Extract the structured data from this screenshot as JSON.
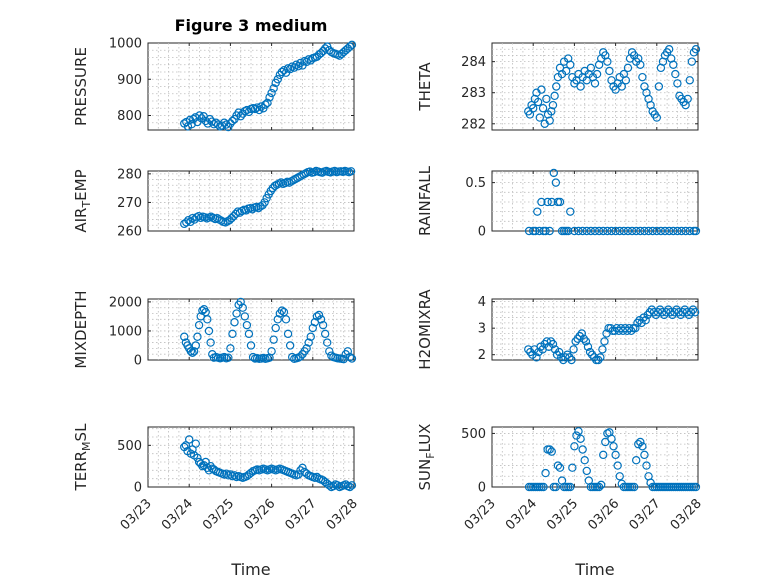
{
  "figure": {
    "title": "Figure 3 medium",
    "xlabel": "Time",
    "marker_color": "#0072BD",
    "xticks": [
      "03/23",
      "03/24",
      "03/25",
      "03/26",
      "03/27",
      "03/28"
    ]
  },
  "chart_data": [
    {
      "type": "scatter",
      "ylabel": "PRESSURE",
      "ylim": [
        760,
        1000
      ],
      "yticks": [
        800,
        900,
        1000
      ],
      "grid": true,
      "x": [
        0.88,
        0.93,
        0.97,
        1.02,
        1.06,
        1.1,
        1.15,
        1.2,
        1.25,
        1.3,
        1.35,
        1.4,
        1.45,
        1.5,
        1.55,
        1.6,
        1.65,
        1.7,
        1.75,
        1.8,
        1.85,
        1.9,
        1.95,
        2.0,
        2.05,
        2.1,
        2.15,
        2.2,
        2.25,
        2.3,
        2.35,
        2.4,
        2.45,
        2.5,
        2.55,
        2.6,
        2.65,
        2.7,
        2.75,
        2.8,
        2.85,
        2.9,
        2.95,
        3.0,
        3.05,
        3.1,
        3.15,
        3.2,
        3.25,
        3.3,
        3.35,
        3.4,
        3.45,
        3.5,
        3.55,
        3.6,
        3.65,
        3.7,
        3.75,
        3.8,
        3.85,
        3.9,
        3.95,
        4.0,
        4.05,
        4.1,
        4.15,
        4.2,
        4.25,
        4.3,
        4.35,
        4.4,
        4.45,
        4.5,
        4.55,
        4.6,
        4.65,
        4.7,
        4.75,
        4.8,
        4.85,
        4.9,
        4.95
      ],
      "y": [
        778,
        782,
        770,
        788,
        776,
        790,
        795,
        782,
        800,
        792,
        798,
        785,
        778,
        790,
        783,
        776,
        780,
        775,
        770,
        772,
        780,
        775,
        768,
        778,
        785,
        790,
        800,
        808,
        798,
        805,
        812,
        815,
        810,
        818,
        820,
        818,
        822,
        815,
        825,
        820,
        830,
        835,
        850,
        862,
        875,
        890,
        900,
        912,
        920,
        925,
        918,
        930,
        928,
        935,
        932,
        940,
        936,
        945,
        938,
        950,
        948,
        955,
        952,
        958,
        960,
        962,
        968,
        972,
        978,
        985,
        990,
        980,
        975,
        972,
        970,
        968,
        965,
        970,
        975,
        980,
        985,
        990,
        995
      ]
    },
    {
      "type": "scatter",
      "ylabel": "THETA",
      "ylim": [
        281.8,
        284.6
      ],
      "yticks": [
        282,
        283,
        284
      ],
      "grid": true,
      "x": [
        0.88,
        0.92,
        0.96,
        1.0,
        1.04,
        1.08,
        1.12,
        1.16,
        1.2,
        1.24,
        1.28,
        1.32,
        1.36,
        1.4,
        1.44,
        1.48,
        1.52,
        1.56,
        1.6,
        1.65,
        1.7,
        1.75,
        1.8,
        1.85,
        1.9,
        1.95,
        2.0,
        2.05,
        2.1,
        2.15,
        2.2,
        2.25,
        2.3,
        2.35,
        2.4,
        2.45,
        2.5,
        2.55,
        2.6,
        2.65,
        2.7,
        2.75,
        2.8,
        2.85,
        2.9,
        2.95,
        3.0,
        3.05,
        3.1,
        3.15,
        3.2,
        3.25,
        3.3,
        3.35,
        3.4,
        3.45,
        3.5,
        3.55,
        3.6,
        3.65,
        3.7,
        3.75,
        3.8,
        3.85,
        3.9,
        3.95,
        4.0,
        4.05,
        4.1,
        4.15,
        4.2,
        4.25,
        4.3,
        4.35,
        4.4,
        4.45,
        4.5,
        4.55,
        4.6,
        4.65,
        4.7,
        4.75,
        4.8,
        4.85,
        4.9,
        4.95
      ],
      "y": [
        282.4,
        282.3,
        282.6,
        282.5,
        282.8,
        283.0,
        282.7,
        282.2,
        283.1,
        282.5,
        282.0,
        282.8,
        282.3,
        282.1,
        282.4,
        282.6,
        282.9,
        283.2,
        283.5,
        283.8,
        283.6,
        284.0,
        283.7,
        284.1,
        283.9,
        283.5,
        283.3,
        283.4,
        283.6,
        283.2,
        283.5,
        283.7,
        283.4,
        283.6,
        283.8,
        283.5,
        283.3,
        283.6,
        283.9,
        284.1,
        284.3,
        284.2,
        284.0,
        283.7,
        283.4,
        283.2,
        283.1,
        283.3,
        283.5,
        283.2,
        283.6,
        283.4,
        283.8,
        284.1,
        284.3,
        284.2,
        284.0,
        284.1,
        283.9,
        283.5,
        283.2,
        283.0,
        282.8,
        282.6,
        282.4,
        282.3,
        282.2,
        283.2,
        283.8,
        284.0,
        284.2,
        284.3,
        284.4,
        284.1,
        283.9,
        283.6,
        283.3,
        282.9,
        282.8,
        282.7,
        282.6,
        282.8,
        283.4,
        284.0,
        284.3,
        284.4
      ]
    },
    {
      "type": "scatter",
      "ylabel": "AIR_TEMP",
      "ylim": [
        260,
        281
      ],
      "yticks": [
        260,
        270,
        280
      ],
      "grid": true,
      "x": [
        0.88,
        0.93,
        0.98,
        1.03,
        1.08,
        1.13,
        1.18,
        1.23,
        1.28,
        1.33,
        1.38,
        1.43,
        1.48,
        1.53,
        1.58,
        1.63,
        1.68,
        1.73,
        1.78,
        1.83,
        1.88,
        1.93,
        1.98,
        2.03,
        2.08,
        2.13,
        2.18,
        2.23,
        2.28,
        2.33,
        2.38,
        2.43,
        2.48,
        2.53,
        2.58,
        2.63,
        2.68,
        2.73,
        2.78,
        2.83,
        2.88,
        2.93,
        2.98,
        3.03,
        3.08,
        3.13,
        3.18,
        3.23,
        3.28,
        3.33,
        3.38,
        3.43,
        3.48,
        3.53,
        3.58,
        3.63,
        3.68,
        3.73,
        3.78,
        3.83,
        3.88,
        3.93,
        3.98,
        4.03,
        4.08,
        4.13,
        4.18,
        4.23,
        4.28,
        4.33,
        4.38,
        4.43,
        4.48,
        4.53,
        4.58,
        4.63,
        4.68,
        4.73,
        4.78,
        4.83,
        4.88,
        4.93
      ],
      "y": [
        262.5,
        263.0,
        263.8,
        263.2,
        264.5,
        264.0,
        264.8,
        265.2,
        264.6,
        265.0,
        264.8,
        264.4,
        264.7,
        265.0,
        264.6,
        264.2,
        264.5,
        264.0,
        263.6,
        263.2,
        263.0,
        263.4,
        263.8,
        264.5,
        265.2,
        266.0,
        266.8,
        266.4,
        267.0,
        267.4,
        267.2,
        267.8,
        268.0,
        267.6,
        268.2,
        268.4,
        268.0,
        268.6,
        269.0,
        270.0,
        271.5,
        272.8,
        274.0,
        275.0,
        275.8,
        276.2,
        276.6,
        277.0,
        276.5,
        276.8,
        277.2,
        276.9,
        277.4,
        277.8,
        278.2,
        278.6,
        279.0,
        279.4,
        279.8,
        280.2,
        280.6,
        280.8,
        280.4,
        280.6,
        281.0,
        280.8,
        280.6,
        280.4,
        280.8,
        281.0,
        280.7,
        280.5,
        280.8,
        281.0,
        280.6,
        280.8,
        280.9,
        280.7,
        281.0,
        280.8,
        280.6,
        280.9
      ]
    },
    {
      "type": "scatter",
      "ylabel": "RAINFALL",
      "ylim": [
        0,
        0.62
      ],
      "yticks": [
        0,
        0.5
      ],
      "grid": true,
      "x": [
        0.9,
        1.0,
        1.05,
        1.1,
        1.15,
        1.2,
        1.25,
        1.3,
        1.35,
        1.4,
        1.45,
        1.5,
        1.55,
        1.6,
        1.65,
        1.7,
        1.75,
        1.8,
        1.85,
        1.9,
        2.0,
        2.1,
        2.2,
        2.3,
        2.4,
        2.5,
        2.6,
        2.7,
        2.8,
        2.9,
        3.0,
        3.1,
        3.2,
        3.3,
        3.4,
        3.5,
        3.6,
        3.7,
        3.8,
        3.9,
        4.0,
        4.1,
        4.2,
        4.3,
        4.4,
        4.5,
        4.6,
        4.7,
        4.8,
        4.9,
        4.95
      ],
      "y": [
        0,
        0,
        0,
        0.2,
        0,
        0.3,
        0,
        0,
        0.3,
        0,
        0.3,
        0.6,
        0.5,
        0.3,
        0.3,
        0,
        0,
        0,
        0,
        0.2,
        0,
        0,
        0,
        0,
        0,
        0,
        0,
        0,
        0,
        0,
        0,
        0,
        0,
        0,
        0,
        0,
        0,
        0,
        0,
        0,
        0,
        0,
        0,
        0,
        0,
        0,
        0,
        0,
        0,
        0,
        0
      ]
    },
    {
      "type": "scatter",
      "ylabel": "MIXDEPTH",
      "ylim": [
        0,
        2100
      ],
      "yticks": [
        0,
        1000,
        2000
      ],
      "grid": true,
      "x": [
        0.88,
        0.92,
        0.96,
        1.0,
        1.04,
        1.08,
        1.12,
        1.16,
        1.2,
        1.24,
        1.28,
        1.32,
        1.36,
        1.4,
        1.44,
        1.48,
        1.52,
        1.56,
        1.6,
        1.65,
        1.7,
        1.75,
        1.8,
        1.85,
        1.9,
        1.95,
        2.0,
        2.05,
        2.1,
        2.15,
        2.2,
        2.25,
        2.3,
        2.35,
        2.4,
        2.45,
        2.5,
        2.55,
        2.6,
        2.65,
        2.7,
        2.75,
        2.8,
        2.85,
        2.9,
        2.95,
        3.0,
        3.05,
        3.1,
        3.15,
        3.2,
        3.25,
        3.3,
        3.35,
        3.4,
        3.45,
        3.5,
        3.55,
        3.6,
        3.65,
        3.7,
        3.75,
        3.8,
        3.85,
        3.9,
        3.95,
        4.0,
        4.05,
        4.1,
        4.15,
        4.2,
        4.25,
        4.3,
        4.35,
        4.4,
        4.45,
        4.5,
        4.55,
        4.6,
        4.65,
        4.7,
        4.75,
        4.8,
        4.85,
        4.9,
        4.95
      ],
      "y": [
        800,
        600,
        500,
        400,
        300,
        250,
        300,
        500,
        800,
        1200,
        1500,
        1700,
        1750,
        1650,
        1400,
        1000,
        600,
        200,
        80,
        100,
        80,
        60,
        80,
        100,
        60,
        80,
        400,
        900,
        1300,
        1600,
        1900,
        2000,
        1800,
        1500,
        1200,
        900,
        500,
        100,
        50,
        60,
        40,
        50,
        70,
        40,
        60,
        80,
        300,
        700,
        1100,
        1400,
        1600,
        1700,
        1650,
        1400,
        900,
        500,
        100,
        40,
        60,
        80,
        120,
        200,
        300,
        400,
        600,
        800,
        1100,
        1300,
        1500,
        1550,
        1400,
        1200,
        900,
        600,
        300,
        150,
        100,
        80,
        60,
        50,
        40,
        30,
        200,
        300,
        100,
        50
      ]
    },
    {
      "type": "scatter",
      "ylabel": "H2OMIXRA",
      "ylim": [
        1.8,
        4.1
      ],
      "yticks": [
        2,
        3,
        4
      ],
      "grid": true,
      "x": [
        0.88,
        0.93,
        0.98,
        1.03,
        1.08,
        1.13,
        1.18,
        1.23,
        1.28,
        1.33,
        1.38,
        1.43,
        1.48,
        1.53,
        1.58,
        1.63,
        1.68,
        1.73,
        1.78,
        1.83,
        1.88,
        1.93,
        1.98,
        2.03,
        2.08,
        2.13,
        2.18,
        2.23,
        2.28,
        2.33,
        2.38,
        2.43,
        2.48,
        2.53,
        2.58,
        2.63,
        2.68,
        2.73,
        2.78,
        2.83,
        2.88,
        2.93,
        2.98,
        3.03,
        3.08,
        3.13,
        3.18,
        3.23,
        3.28,
        3.33,
        3.38,
        3.43,
        3.48,
        3.53,
        3.58,
        3.63,
        3.68,
        3.73,
        3.78,
        3.83,
        3.88,
        3.93,
        3.98,
        4.03,
        4.08,
        4.13,
        4.18,
        4.23,
        4.28,
        4.33,
        4.38,
        4.43,
        4.48,
        4.53,
        4.58,
        4.63,
        4.68,
        4.73,
        4.78,
        4.83,
        4.88,
        4.93
      ],
      "y": [
        2.2,
        2.1,
        2.0,
        2.2,
        1.9,
        2.1,
        2.3,
        2.2,
        2.4,
        2.5,
        2.3,
        2.5,
        2.4,
        2.2,
        2.0,
        2.1,
        1.9,
        1.8,
        1.9,
        2.0,
        1.9,
        1.8,
        2.2,
        2.5,
        2.6,
        2.7,
        2.8,
        2.6,
        2.5,
        2.3,
        2.1,
        2.0,
        1.9,
        1.8,
        1.8,
        1.9,
        2.2,
        2.5,
        2.8,
        3.0,
        3.0,
        2.9,
        2.9,
        3.0,
        2.9,
        3.0,
        2.9,
        3.0,
        2.9,
        3.0,
        2.9,
        3.0,
        3.0,
        3.2,
        3.3,
        3.2,
        3.4,
        3.3,
        3.5,
        3.6,
        3.7,
        3.6,
        3.5,
        3.6,
        3.7,
        3.6,
        3.5,
        3.6,
        3.7,
        3.6,
        3.5,
        3.6,
        3.7,
        3.6,
        3.5,
        3.6,
        3.7,
        3.6,
        3.5,
        3.6,
        3.7,
        3.6
      ]
    },
    {
      "type": "scatter",
      "ylabel": "TERR_MSL",
      "ylim": [
        0,
        720
      ],
      "yticks": [
        0,
        500
      ],
      "grid": true,
      "x": [
        0.88,
        0.92,
        0.96,
        1.0,
        1.04,
        1.08,
        1.12,
        1.16,
        1.2,
        1.24,
        1.28,
        1.32,
        1.36,
        1.4,
        1.44,
        1.48,
        1.52,
        1.56,
        1.6,
        1.65,
        1.7,
        1.75,
        1.8,
        1.85,
        1.9,
        1.95,
        2.0,
        2.05,
        2.1,
        2.15,
        2.2,
        2.25,
        2.3,
        2.35,
        2.4,
        2.45,
        2.5,
        2.55,
        2.6,
        2.65,
        2.7,
        2.75,
        2.8,
        2.85,
        2.9,
        2.95,
        3.0,
        3.05,
        3.1,
        3.15,
        3.2,
        3.25,
        3.3,
        3.35,
        3.4,
        3.45,
        3.5,
        3.55,
        3.6,
        3.65,
        3.7,
        3.75,
        3.8,
        3.85,
        3.9,
        3.95,
        4.0,
        4.05,
        4.1,
        4.15,
        4.2,
        4.25,
        4.3,
        4.35,
        4.4,
        4.45,
        4.5,
        4.55,
        4.6,
        4.65,
        4.7,
        4.75,
        4.8,
        4.85,
        4.9,
        4.95
      ],
      "y": [
        480,
        500,
        430,
        570,
        400,
        450,
        380,
        520,
        350,
        300,
        280,
        250,
        260,
        300,
        230,
        200,
        250,
        220,
        210,
        190,
        180,
        170,
        160,
        150,
        160,
        140,
        150,
        130,
        140,
        120,
        130,
        120,
        110,
        120,
        130,
        150,
        170,
        190,
        200,
        210,
        200,
        210,
        220,
        210,
        200,
        210,
        220,
        210,
        200,
        210,
        220,
        210,
        200,
        190,
        180,
        170,
        160,
        150,
        140,
        150,
        200,
        230,
        180,
        160,
        140,
        130,
        120,
        110,
        120,
        100,
        90,
        80,
        60,
        40,
        20,
        0,
        10,
        30,
        20,
        0,
        10,
        20,
        30,
        10,
        0,
        20
      ]
    },
    {
      "type": "scatter",
      "ylabel": "SUN_FLUX",
      "ylim": [
        0,
        560
      ],
      "yticks": [
        0,
        500
      ],
      "grid": true,
      "x": [
        0.9,
        0.95,
        1.0,
        1.05,
        1.1,
        1.15,
        1.2,
        1.25,
        1.3,
        1.35,
        1.4,
        1.45,
        1.5,
        1.55,
        1.6,
        1.65,
        1.7,
        1.75,
        1.8,
        1.85,
        1.9,
        1.95,
        2.0,
        2.05,
        2.1,
        2.15,
        2.2,
        2.25,
        2.3,
        2.35,
        2.4,
        2.45,
        2.5,
        2.55,
        2.6,
        2.65,
        2.7,
        2.75,
        2.8,
        2.85,
        2.9,
        2.95,
        3.0,
        3.05,
        3.1,
        3.15,
        3.2,
        3.25,
        3.3,
        3.35,
        3.4,
        3.45,
        3.5,
        3.55,
        3.6,
        3.65,
        3.7,
        3.75,
        3.8,
        3.85,
        3.9,
        3.95,
        4.0,
        4.05,
        4.1,
        4.15,
        4.2,
        4.25,
        4.3,
        4.35,
        4.4,
        4.45,
        4.5,
        4.55,
        4.6,
        4.65,
        4.7,
        4.75,
        4.8,
        4.85,
        4.9,
        4.95
      ],
      "y": [
        0,
        0,
        0,
        0,
        0,
        0,
        0,
        0,
        130,
        350,
        350,
        330,
        0,
        0,
        200,
        180,
        60,
        0,
        0,
        0,
        0,
        180,
        380,
        480,
        520,
        450,
        350,
        250,
        150,
        60,
        0,
        0,
        0,
        0,
        0,
        20,
        300,
        420,
        500,
        510,
        450,
        380,
        300,
        200,
        100,
        30,
        0,
        0,
        0,
        0,
        0,
        0,
        250,
        400,
        420,
        380,
        300,
        200,
        100,
        40,
        0,
        0,
        0,
        0,
        0,
        0,
        0,
        0,
        0,
        0,
        0,
        0,
        0,
        0,
        0,
        0,
        0,
        0,
        0,
        0,
        0,
        0
      ]
    }
  ]
}
